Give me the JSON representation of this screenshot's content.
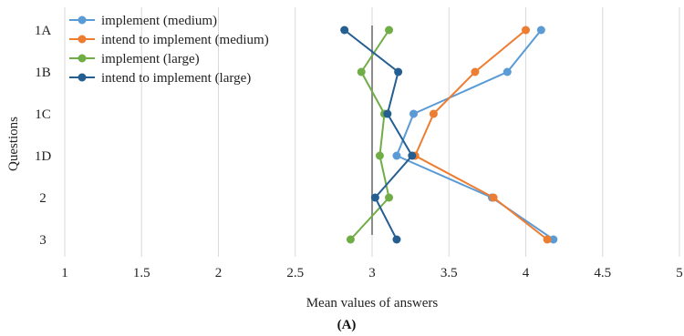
{
  "chart_data": {
    "type": "line",
    "orientation": "horizontal",
    "title": "",
    "xlabel": "Mean values of answers",
    "ylabel": "Questions",
    "caption": "(A)",
    "xlim": [
      1,
      5
    ],
    "x_ticks": [
      "1",
      "1.5",
      "2",
      "2.5",
      "3",
      "3.5",
      "4",
      "4.5",
      "5"
    ],
    "categories": [
      "1A",
      "1B",
      "1C",
      "1D",
      "2",
      "3"
    ],
    "reference_line_x": 3,
    "grid": "vertical",
    "legend_position": "top-left",
    "series": [
      {
        "name": "implement (medium)",
        "color": "#5b9bd5",
        "values": [
          4.1,
          3.88,
          3.27,
          3.16,
          3.78,
          4.18
        ]
      },
      {
        "name": "intend to implement (medium)",
        "color": "#ed7d31",
        "values": [
          4.0,
          3.67,
          3.4,
          3.28,
          3.79,
          4.14
        ]
      },
      {
        "name": "implement (large)",
        "color": "#70ad47",
        "values": [
          3.11,
          2.93,
          3.08,
          3.05,
          3.11,
          2.86
        ]
      },
      {
        "name": "intend to implement (large)",
        "color": "#255e91",
        "values": [
          2.82,
          3.17,
          3.1,
          3.26,
          3.02,
          3.16
        ]
      }
    ]
  }
}
